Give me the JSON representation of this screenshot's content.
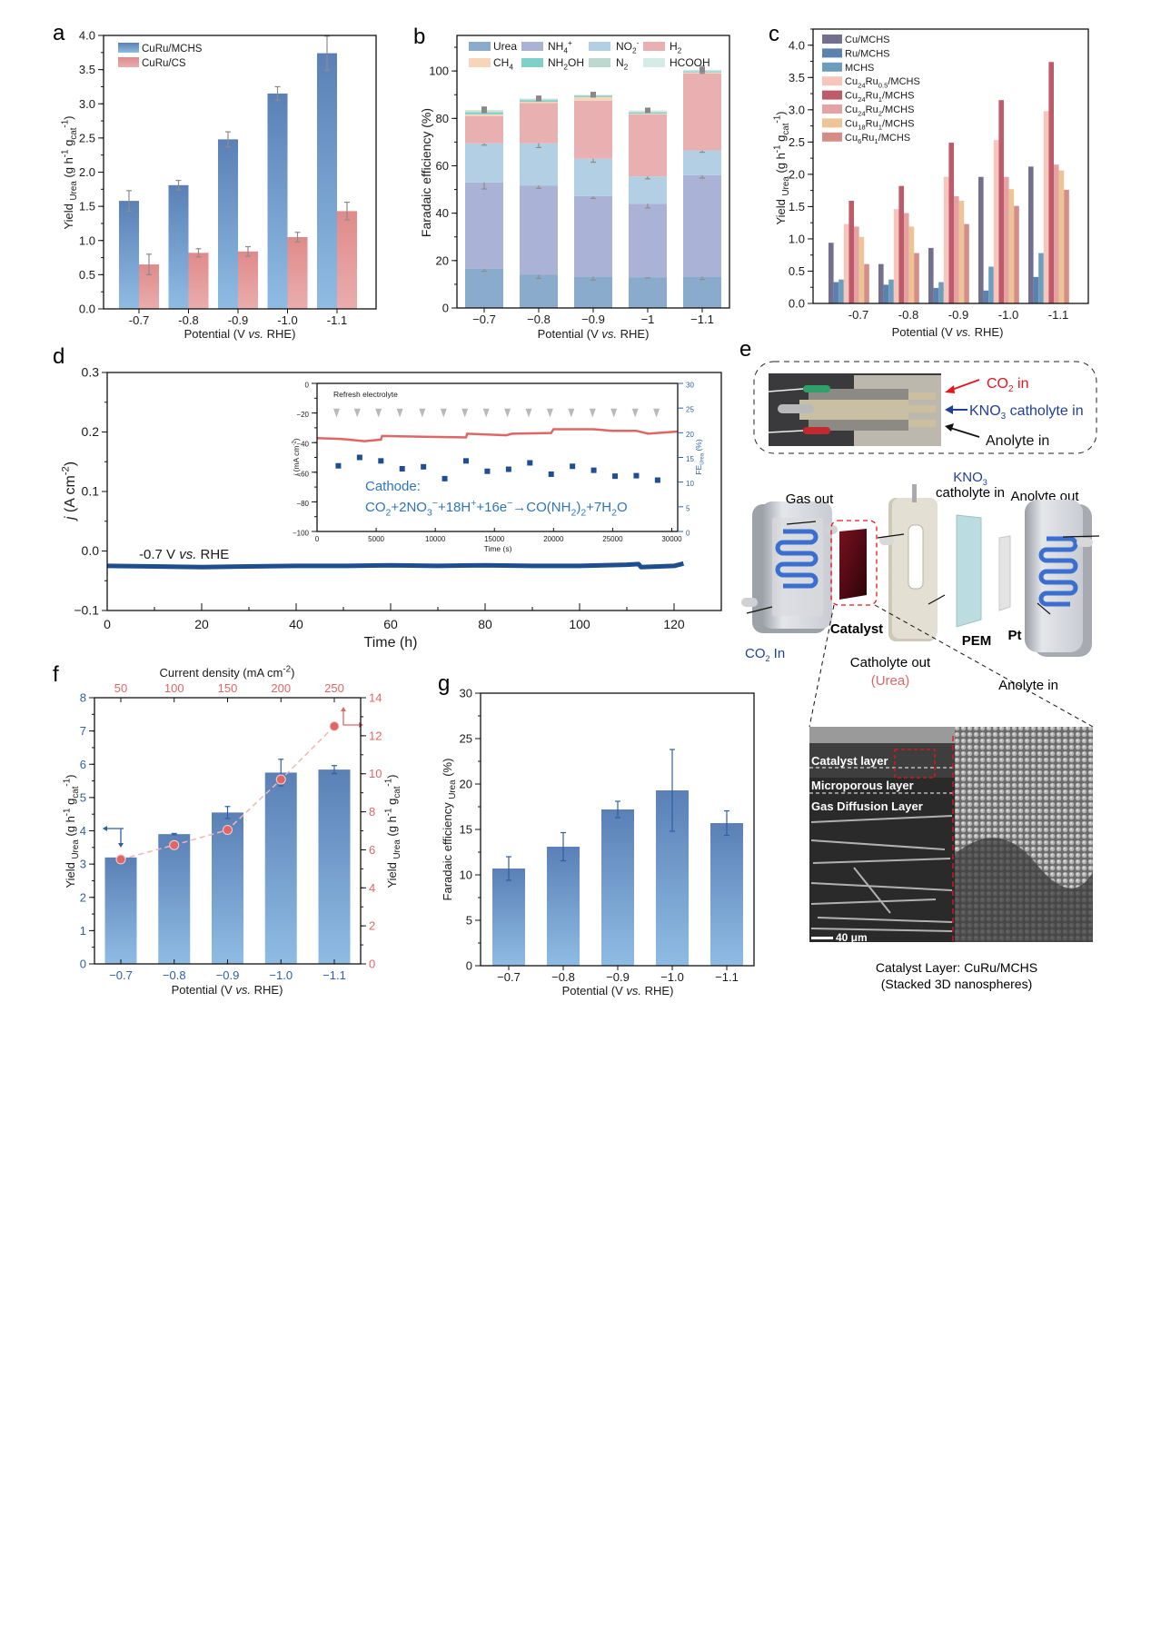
{
  "panel_labels": {
    "a": "a",
    "b": "b",
    "c": "c",
    "d": "d",
    "e": "e",
    "f": "f",
    "g": "g"
  },
  "common": {
    "potential_label": [
      {
        "t": "Potential (V "
      },
      {
        "t": "vs.",
        "s": "i"
      },
      {
        "t": " RHE)"
      }
    ],
    "yield_label": [
      {
        "t": "Yield "
      },
      {
        "t": "Urea",
        "s": "sub"
      },
      {
        "t": " (g h"
      },
      {
        "t": "-1",
        "s": "sup"
      },
      {
        "t": " g"
      },
      {
        "t": "cat",
        "s": "sub"
      },
      {
        "t": "-1",
        "s": "sup"
      },
      {
        "t": ")"
      }
    ]
  },
  "chart_data": [
    {
      "panel": "a",
      "type": "bar",
      "categories": [
        "-0.7",
        "-0.8",
        "-0.9",
        "-1.0",
        "-1.1"
      ],
      "series": [
        {
          "name": "CuRu/MCHS",
          "values": [
            1.58,
            1.81,
            2.48,
            3.15,
            3.74
          ],
          "errors": [
            0.15,
            0.07,
            0.11,
            0.1,
            0.25
          ],
          "colors": [
            "#5a80b6",
            "#8fbce3"
          ]
        },
        {
          "name": "CuRu/CS",
          "values": [
            0.65,
            0.82,
            0.84,
            1.05,
            1.43
          ],
          "errors": [
            0.15,
            0.06,
            0.07,
            0.07,
            0.13
          ],
          "colors": [
            "#e08a8a",
            "#eaadad"
          ]
        }
      ],
      "ylim": [
        0,
        4.0
      ],
      "yticks": [
        "0.0",
        "0.5",
        "1.0",
        "1.5",
        "2.0",
        "2.5",
        "3.0",
        "3.5",
        "4.0"
      ],
      "legend": "top-left",
      "error_color": "#8c8c8c"
    },
    {
      "panel": "b",
      "type": "stacked_bar",
      "ylabel": "Faradaic efficiency (%)",
      "categories": [
        "−0.7",
        "−0.8",
        "−0.9",
        "−1",
        "−1.1"
      ],
      "series": [
        {
          "name": "Urea",
          "values": [
            16.5,
            14,
            13.3,
            13,
            13.3
          ],
          "errors": [
            1,
            1.5,
            1.5,
            0.3,
            1.3
          ],
          "color": "#8aabcb"
        },
        {
          "name": "NH4+",
          "values": [
            36.5,
            37.7,
            33.9,
            31,
            42.7
          ],
          "errors": [
            2.8,
            1.2,
            1,
            1.8,
            1.2
          ],
          "color": "#aab3d6"
        },
        {
          "name": "NO2-",
          "values": [
            16.5,
            17.8,
            15.8,
            11.5,
            10.5
          ],
          "errors": [
            0.8,
            1.8,
            1.5,
            1,
            0.8
          ],
          "color": "#b3cfe3"
        },
        {
          "name": "H2",
          "values": [
            11.5,
            17,
            24.5,
            26.2,
            32.5
          ],
          "color": "#e8b0b0"
        },
        {
          "name": "CH4",
          "values": [
            0.7,
            0.5,
            1.5,
            0.3,
            0.4
          ],
          "color": "#f8d5b8"
        },
        {
          "name": "NH2OH",
          "values": [
            0.8,
            0.6,
            0.6,
            0.5,
            0.4
          ],
          "color": "#7fd0c8"
        },
        {
          "name": "N2",
          "values": [
            0.6,
            0.5,
            0.2,
            0.4,
            0.4
          ],
          "color": "#bcd9d0"
        },
        {
          "name": "HCOOH",
          "values": [
            0.5,
            0.3,
            0.2,
            0.5,
            0.3
          ],
          "errors": [
            1.2,
            1,
            1,
            0.8,
            1.5
          ],
          "color": "#d5ebe5"
        }
      ],
      "ylim": [
        0,
        115
      ],
      "yticks": [
        "0",
        "20",
        "40",
        "60",
        "80",
        "100"
      ],
      "legend": "top",
      "error_color": "#8c8c8c"
    },
    {
      "panel": "c",
      "type": "bar",
      "categories": [
        "-0.7",
        "-0.8",
        "-0.9",
        "-1.0",
        "-1.1"
      ],
      "series": [
        {
          "name": "Cu/MCHS",
          "values": [
            0.94,
            0.61,
            0.86,
            1.96,
            2.12
          ],
          "color": "#736f8e"
        },
        {
          "name": "Ru/MCHS",
          "values": [
            0.33,
            0.29,
            0.24,
            0.2,
            0.41
          ],
          "color": "#5b82ae"
        },
        {
          "name": "MCHS",
          "values": [
            0.37,
            0.37,
            0.33,
            0.57,
            0.78
          ],
          "color": "#6d9dbd"
        },
        {
          "name": "Cu24Ru0.5/MCHS",
          "values": [
            1.23,
            1.46,
            1.96,
            2.53,
            2.98
          ],
          "color": "#f6c6bb"
        },
        {
          "name": "Cu24Ru1/MCHS",
          "values": [
            1.59,
            1.82,
            2.49,
            3.15,
            3.74
          ],
          "color": "#bd5b6a"
        },
        {
          "name": "Cu24Ru2/MCHS",
          "values": [
            1.19,
            1.4,
            1.66,
            1.96,
            2.15
          ],
          "color": "#e6a2a3"
        },
        {
          "name": "Cu18Ru1/MCHS",
          "values": [
            1.03,
            1.19,
            1.59,
            1.77,
            2.06
          ],
          "color": "#ecc495"
        },
        {
          "name": "Cu6Ru1/MCHS",
          "values": [
            0.61,
            0.78,
            1.23,
            1.51,
            1.76
          ],
          "color": "#d48e86"
        }
      ],
      "ylim": [
        0,
        4.25
      ],
      "yticks": [
        "0.0",
        "0.5",
        "1.0",
        "1.5",
        "2.0",
        "2.5",
        "3.0",
        "3.5",
        "4.0"
      ],
      "legend": "top-left"
    },
    {
      "panel": "d",
      "type": "line",
      "xlabel": "Time (h)",
      "ylabel": [
        {
          "t": "j",
          "s": "i"
        },
        {
          "t": " (A cm"
        },
        {
          "t": "-2",
          "s": "sup"
        },
        {
          "t": ")"
        }
      ],
      "annotation": [
        {
          "t": "-0.7 V "
        },
        {
          "t": "vs.",
          "s": "i"
        },
        {
          "t": " RHE"
        }
      ],
      "x": [
        0,
        10,
        20,
        30,
        40,
        50,
        60,
        70,
        80,
        90,
        100,
        110,
        112.5,
        113,
        120,
        122
      ],
      "y": [
        -0.025,
        -0.026,
        -0.027,
        -0.026,
        -0.025,
        -0.025,
        -0.024,
        -0.025,
        -0.024,
        -0.025,
        -0.025,
        -0.023,
        -0.022,
        -0.027,
        -0.025,
        -0.021
      ],
      "xlim": [
        0,
        130
      ],
      "ylim": [
        -0.1,
        0.3
      ],
      "xticks": [
        "0",
        "20",
        "40",
        "60",
        "80",
        "100",
        "120"
      ],
      "yticks": [
        "−0.1",
        "0.0",
        "0.1",
        "0.2",
        "0.3"
      ],
      "line_color": "#1f4e8f",
      "inset": {
        "title": "Refresh electrolyte",
        "xlabel": "Time (s)",
        "ylabel": [
          {
            "t": "j",
            "s": "i"
          },
          {
            "t": " (mA cm"
          },
          {
            "t": "-2",
            "s": "sup"
          },
          {
            "t": ")"
          }
        ],
        "ylabel_right": [
          {
            "t": "FE"
          },
          {
            "t": "Urea",
            "s": "sub"
          },
          {
            "t": " (%)"
          }
        ],
        "xlim": [
          0,
          30500
        ],
        "ylim": [
          -100,
          0
        ],
        "ylim_right": [
          0,
          30
        ],
        "xticks": [
          "0",
          "5000",
          "10000",
          "15000",
          "20000",
          "25000",
          "30000"
        ],
        "yticks": [
          "−100",
          "−80",
          "−60",
          "−40",
          "−20",
          "0"
        ],
        "yticks_right": [
          "0",
          "5",
          "10",
          "15",
          "20",
          "25",
          "30"
        ],
        "current": {
          "t": [
            0,
            2000,
            4000,
            5400,
            5500,
            9000,
            12600,
            12700,
            16000,
            16500,
            19800,
            20000,
            23400,
            25000,
            27000,
            28000,
            30500
          ],
          "j": [
            -37,
            -37.5,
            -39,
            -38,
            -35.5,
            -36,
            -36.5,
            -34,
            -35,
            -34,
            -33.5,
            -31,
            -31,
            -32,
            -32,
            -34,
            -32.5
          ],
          "color": "#e06666"
        },
        "refresh_times_s": [
          1650,
          3400,
          5200,
          7000,
          8900,
          10700,
          12500,
          14300,
          16100,
          17900,
          19700,
          21500,
          23300,
          25100,
          26900,
          28700
        ],
        "fe_urea": {
          "t": [
            1800,
            3600,
            5400,
            7200,
            9000,
            10800,
            12600,
            14400,
            16200,
            18000,
            19800,
            21600,
            23400,
            25200,
            27000,
            28800
          ],
          "fe": [
            13.3,
            15,
            14.3,
            12.7,
            13.1,
            10.7,
            14.3,
            12.2,
            12.6,
            13.9,
            11.6,
            13.2,
            12.4,
            11.2,
            11.3,
            10.4
          ],
          "color": "#1f4e96"
        },
        "cathode_label": "Cathode:",
        "equation": [
          {
            "t": "CO"
          },
          {
            "t": "2",
            "s": "sub"
          },
          {
            "t": "+2NO"
          },
          {
            "t": "3",
            "s": "sub"
          },
          {
            "t": "−",
            "s": "sup"
          },
          {
            "t": "+18H"
          },
          {
            "t": "+",
            "s": "sup"
          },
          {
            "t": "+16e"
          },
          {
            "t": "−",
            "s": "sup"
          },
          {
            "t": "→CO(NH"
          },
          {
            "t": "2",
            "s": "sub"
          },
          {
            "t": ")"
          },
          {
            "t": "2",
            "s": "sub"
          },
          {
            "t": "+7H"
          },
          {
            "t": "2",
            "s": "sub"
          },
          {
            "t": "O"
          }
        ],
        "text_color": "#2e75b6"
      }
    },
    {
      "panel": "f",
      "type": "bar+line",
      "categories": [
        "−0.7",
        "−0.8",
        "−0.9",
        "−1.0",
        "−1.1"
      ],
      "bars": {
        "values": [
          3.2,
          3.9,
          4.55,
          5.75,
          5.84
        ],
        "errors": [
          0.0,
          0.02,
          0.18,
          0.4,
          0.12
        ],
        "colors": [
          "#5a80b6",
          "#8fbce3"
        ]
      },
      "ylim": [
        0,
        8
      ],
      "yticks": [
        "0",
        "1",
        "2",
        "3",
        "4",
        "5",
        "6",
        "7",
        "8"
      ],
      "top_xlabel": [
        {
          "t": "Current density (mA cm"
        },
        {
          "t": "-2",
          "s": "sup"
        },
        {
          "t": ")"
        }
      ],
      "top_xticks": [
        "50",
        "100",
        "150",
        "200",
        "250"
      ],
      "line": {
        "current_density": [
          50,
          100,
          150,
          200,
          250
        ],
        "values": [
          5.5,
          6.25,
          7.05,
          9.7,
          12.5
        ],
        "color": "#e06666"
      },
      "ylim_right": [
        0,
        14
      ],
      "yticks_right": [
        "0",
        "2",
        "4",
        "6",
        "8",
        "10",
        "12",
        "14"
      ],
      "left_color": "#2e5fa5",
      "right_color": "#e06666"
    },
    {
      "panel": "g",
      "type": "bar",
      "ylabel": [
        {
          "t": "Faradaic efficiency "
        },
        {
          "t": "Urea",
          "s": "sub"
        },
        {
          "t": " (%)"
        }
      ],
      "categories": [
        "−0.7",
        "−0.8",
        "−0.9",
        "−1.0",
        "−1.1"
      ],
      "values": [
        10.7,
        13.1,
        17.2,
        19.3,
        15.7
      ],
      "errors": [
        1.3,
        1.55,
        0.9,
        4.5,
        1.35
      ],
      "colors": [
        "#5a80b6",
        "#8fbce3"
      ],
      "ylim": [
        0,
        30
      ],
      "yticks": [
        "0",
        "5",
        "10",
        "15",
        "20",
        "25",
        "30"
      ]
    }
  ],
  "panel_e": {
    "co2_in": [
      "CO",
      "2",
      " in"
    ],
    "kno3_in": [
      "KNO",
      "3",
      " catholyte in"
    ],
    "anolyte_in_photo": "Anolyte in",
    "gas_out": "Gas out",
    "kno3_top": [
      "KNO",
      "3"
    ],
    "catholyte_in": "catholyte in",
    "anolyte_out": "Anolyte out",
    "catalyst": "Catalyst",
    "pem": "PEM",
    "pt": "Pt",
    "co2_in_cell": [
      "CO",
      "2",
      " In"
    ],
    "catholyte_out": "Catholyte out",
    "urea": "(Urea)",
    "anolyte_in_cell": "Anolyte in",
    "sem_labels": [
      "Catalyst layer",
      "Microporous layer",
      "Gas Diffusion Layer"
    ],
    "scale_bar": "40 μm",
    "caption_1": "Catalyst Layer: CuRu/MCHS",
    "caption_2": "(Stacked 3D nanospheres)",
    "colors": {
      "red": "#e8141e",
      "blue": "#1f3f99",
      "channel": "#3a6fd0"
    }
  }
}
